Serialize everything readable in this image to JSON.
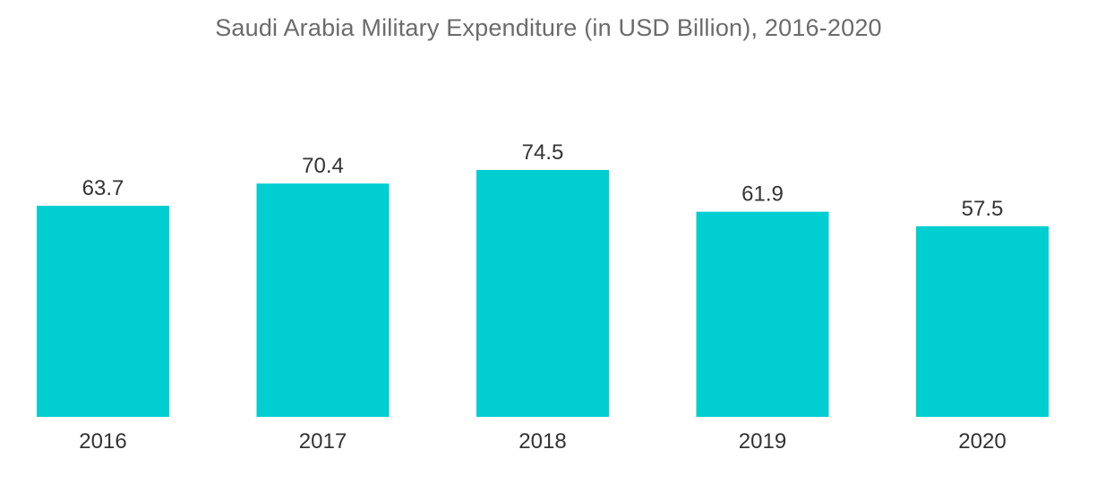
{
  "chart_data": {
    "type": "bar",
    "title": "Saudi Arabia Military Expenditure (in USD Billion), 2016-2020",
    "categories": [
      "2016",
      "2017",
      "2018",
      "2019",
      "2020"
    ],
    "values": [
      63.7,
      70.4,
      74.5,
      61.9,
      57.5
    ],
    "value_labels": [
      "63.7",
      "70.4",
      "74.5",
      "61.9",
      "57.5"
    ],
    "xlabel": "",
    "ylabel": "",
    "ylim": [
      0,
      74.5
    ],
    "grid": false,
    "legend": "none",
    "bar_color": "#00CED1"
  }
}
